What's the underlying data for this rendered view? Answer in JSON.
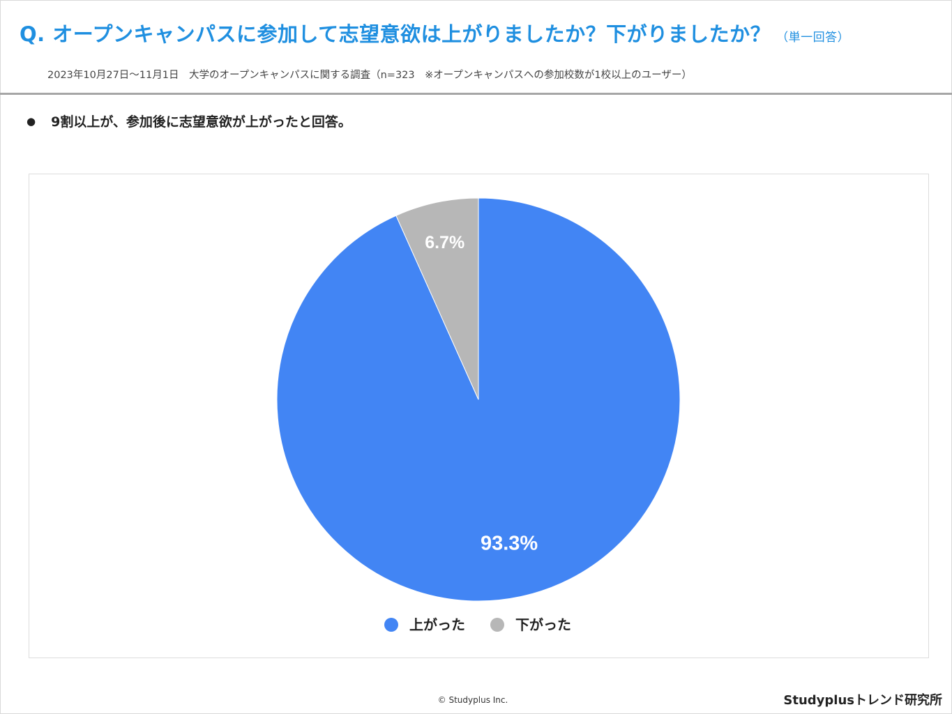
{
  "header": {
    "title": "Q. オープンキャンパスに参加して志望意欲は上がりましたか？下がりましたか？",
    "title_note": "（単一回答）",
    "subtitle": "2023年10月27日～11月1日　大学のオープンキャンパスに関する調査（n=323　※オープンキャンパスへの参加校数が1校以上のユーザー）"
  },
  "summary": {
    "bullet": "●",
    "text": "9割以上が、参加後に志望意欲が上がったと回答。"
  },
  "colors": {
    "accent": "#1f8fe0",
    "series_up": "#4285f4",
    "series_down": "#b7b7b7"
  },
  "chart_data": {
    "type": "pie",
    "categories": [
      "上がった",
      "下がった"
    ],
    "values": [
      93.3,
      6.7
    ],
    "labels": [
      "93.3%",
      "6.7%"
    ],
    "colors": [
      "#4285f4",
      "#b7b7b7"
    ],
    "legend": "bottom"
  },
  "footer": {
    "copyright": "© Studyplus Inc.",
    "brand": "Studyplusトレンド研究所"
  }
}
